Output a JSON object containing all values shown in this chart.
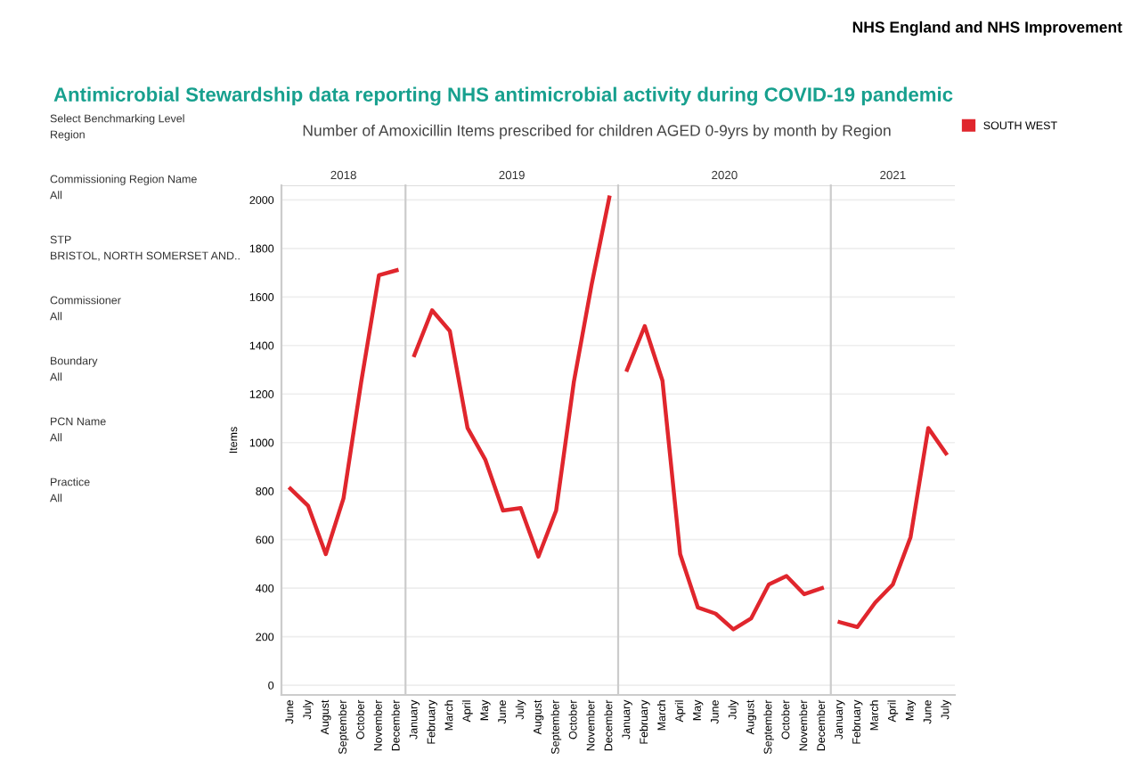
{
  "chart_data": [
    {
      "type": "other",
      "title": "Antimicrobial Stewardship data reporting NHS antimicrobial activity during COVID-19 pandemic",
      "subtitle": "Number of Amoxicillin Items prescribed for children AGED 0-9yrs by month by Region",
      "annotations": [
        "NHS England and NHS Improvement",
        "Select Benchmarking Level",
        "Region",
        "Commissioning Region Name",
        "All",
        "STP",
        "BRISTOL, NORTH SOMERSET AND..",
        "Commissioner",
        "All",
        "Boundary",
        "All",
        "PCN Name",
        "All",
        "Practice",
        "All"
      ]
    },
    {
      "type": "line",
      "title": "2018",
      "ylabel": "Items",
      "categories": [
        "June",
        "July",
        "August",
        "September",
        "October",
        "November",
        "December"
      ],
      "series": [
        {
          "color": "#e0262d",
          "values": [
            810,
            740,
            540,
            770,
            1250,
            1690,
            1710
          ]
        }
      ],
      "ylim": [
        -40,
        2060
      ],
      "yticks": [
        0,
        200,
        400,
        600,
        800,
        1000,
        1200,
        1400,
        1600,
        1800,
        2000
      ],
      "grid": "y"
    },
    {
      "type": "line",
      "title": "2019",
      "categories": [
        "January",
        "February",
        "March",
        "April",
        "May",
        "June",
        "July",
        "August",
        "September",
        "October",
        "November",
        "December"
      ],
      "series": [
        {
          "color": "#e0262d",
          "values": [
            1360,
            1545,
            1460,
            1060,
            930,
            720,
            730,
            530,
            720,
            1250,
            1650,
            2010
          ]
        }
      ],
      "ylim": [
        -40,
        2060
      ],
      "yticks": [
        0,
        200,
        400,
        600,
        800,
        1000,
        1200,
        1400,
        1600,
        1800,
        2000
      ],
      "grid": "y",
      "tick_labels": "x"
    },
    {
      "type": "line",
      "title": "2020",
      "categories": [
        "January",
        "February",
        "March",
        "April",
        "May",
        "June",
        "July",
        "August",
        "September",
        "October",
        "November",
        "December"
      ],
      "series": [
        {
          "color": "#e0262d",
          "values": [
            1300,
            1480,
            1255,
            540,
            320,
            295,
            230,
            275,
            415,
            450,
            375,
            400
          ]
        }
      ],
      "ylim": [
        -40,
        2060
      ],
      "yticks": [
        0,
        200,
        400,
        600,
        800,
        1000,
        1200,
        1400,
        1600,
        1800,
        2000
      ],
      "grid": "y",
      "tick_labels": "x"
    },
    {
      "type": "line",
      "title": "2021",
      "categories": [
        "January",
        "February",
        "March",
        "April",
        "May",
        "June",
        "July"
      ],
      "series": [
        {
          "name": "SOUTH WEST",
          "color": "#e0262d",
          "values": [
            260,
            240,
            340,
            415,
            610,
            1060,
            955
          ]
        }
      ],
      "ylim": [
        -40,
        2060
      ],
      "yticks": [
        0,
        200,
        400,
        600,
        800,
        1000,
        1200,
        1400,
        1600,
        1800,
        2000
      ],
      "grid": "y",
      "tick_labels": "x",
      "legend": "top right"
    }
  ]
}
